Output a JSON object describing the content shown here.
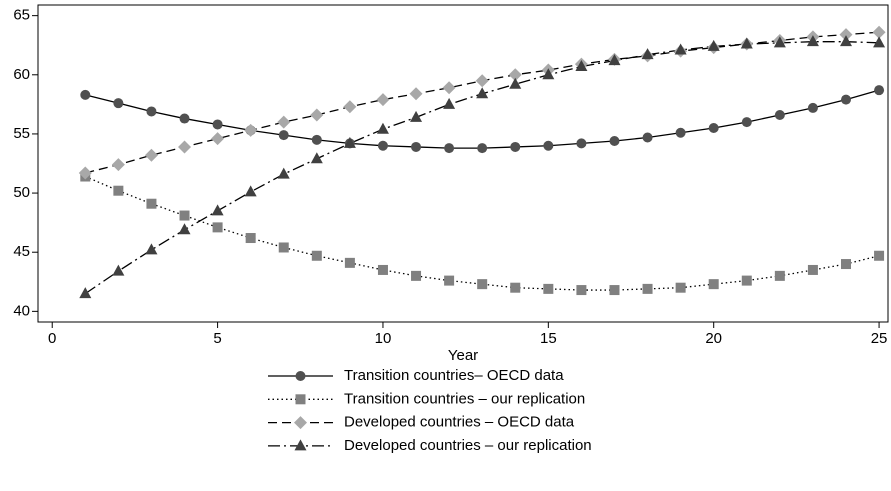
{
  "chart_data": {
    "type": "line",
    "x": [
      1,
      2,
      3,
      4,
      5,
      6,
      7,
      8,
      9,
      10,
      11,
      12,
      13,
      14,
      15,
      16,
      17,
      18,
      19,
      20,
      21,
      22,
      23,
      24,
      25
    ],
    "xlabel": "Year",
    "xlim": [
      -0.43,
      25.27
    ],
    "xticks": [
      0,
      5,
      10,
      15,
      20,
      25
    ],
    "ylim": [
      39.1,
      65.9
    ],
    "yticks": [
      40,
      45,
      50,
      55,
      60,
      65
    ],
    "grid": false,
    "legend": "bottom",
    "series": [
      {
        "name": "Transition countries– OECD data",
        "color": "#505050",
        "marker": "circle",
        "dash": "solid",
        "values": [
          58.3,
          57.6,
          56.9,
          56.3,
          55.8,
          55.3,
          54.9,
          54.5,
          54.2,
          54.0,
          53.9,
          53.8,
          53.8,
          53.9,
          54.0,
          54.2,
          54.4,
          54.7,
          55.1,
          55.5,
          56.0,
          56.6,
          57.2,
          57.9,
          58.7
        ]
      },
      {
        "name": "Transition countries – our replication",
        "color": "#808080",
        "marker": "square",
        "dash": "dotted",
        "values": [
          51.4,
          50.2,
          49.1,
          48.1,
          47.1,
          46.2,
          45.4,
          44.7,
          44.1,
          43.5,
          43.0,
          42.6,
          42.3,
          42.0,
          41.9,
          41.8,
          41.8,
          41.9,
          42.0,
          42.3,
          42.6,
          43.0,
          43.5,
          44.0,
          44.7
        ]
      },
      {
        "name": "Developed countries – OECD data",
        "color": "#a8a8a8",
        "marker": "diamond",
        "dash": "dashed",
        "values": [
          51.7,
          52.4,
          53.2,
          53.9,
          54.6,
          55.3,
          56.0,
          56.6,
          57.3,
          57.9,
          58.4,
          58.9,
          59.5,
          60.0,
          60.4,
          60.9,
          61.3,
          61.6,
          62.0,
          62.3,
          62.6,
          62.9,
          63.2,
          63.4,
          63.6
        ]
      },
      {
        "name": "Developed countries – our replication",
        "color": "#404040",
        "marker": "triangle",
        "dash": "dashdot",
        "values": [
          41.5,
          43.4,
          45.2,
          46.9,
          48.5,
          50.1,
          51.6,
          52.9,
          54.2,
          55.4,
          56.4,
          57.5,
          58.4,
          59.2,
          60.0,
          60.7,
          61.2,
          61.7,
          62.1,
          62.4,
          62.6,
          62.7,
          62.8,
          62.8,
          62.7
        ]
      }
    ]
  }
}
